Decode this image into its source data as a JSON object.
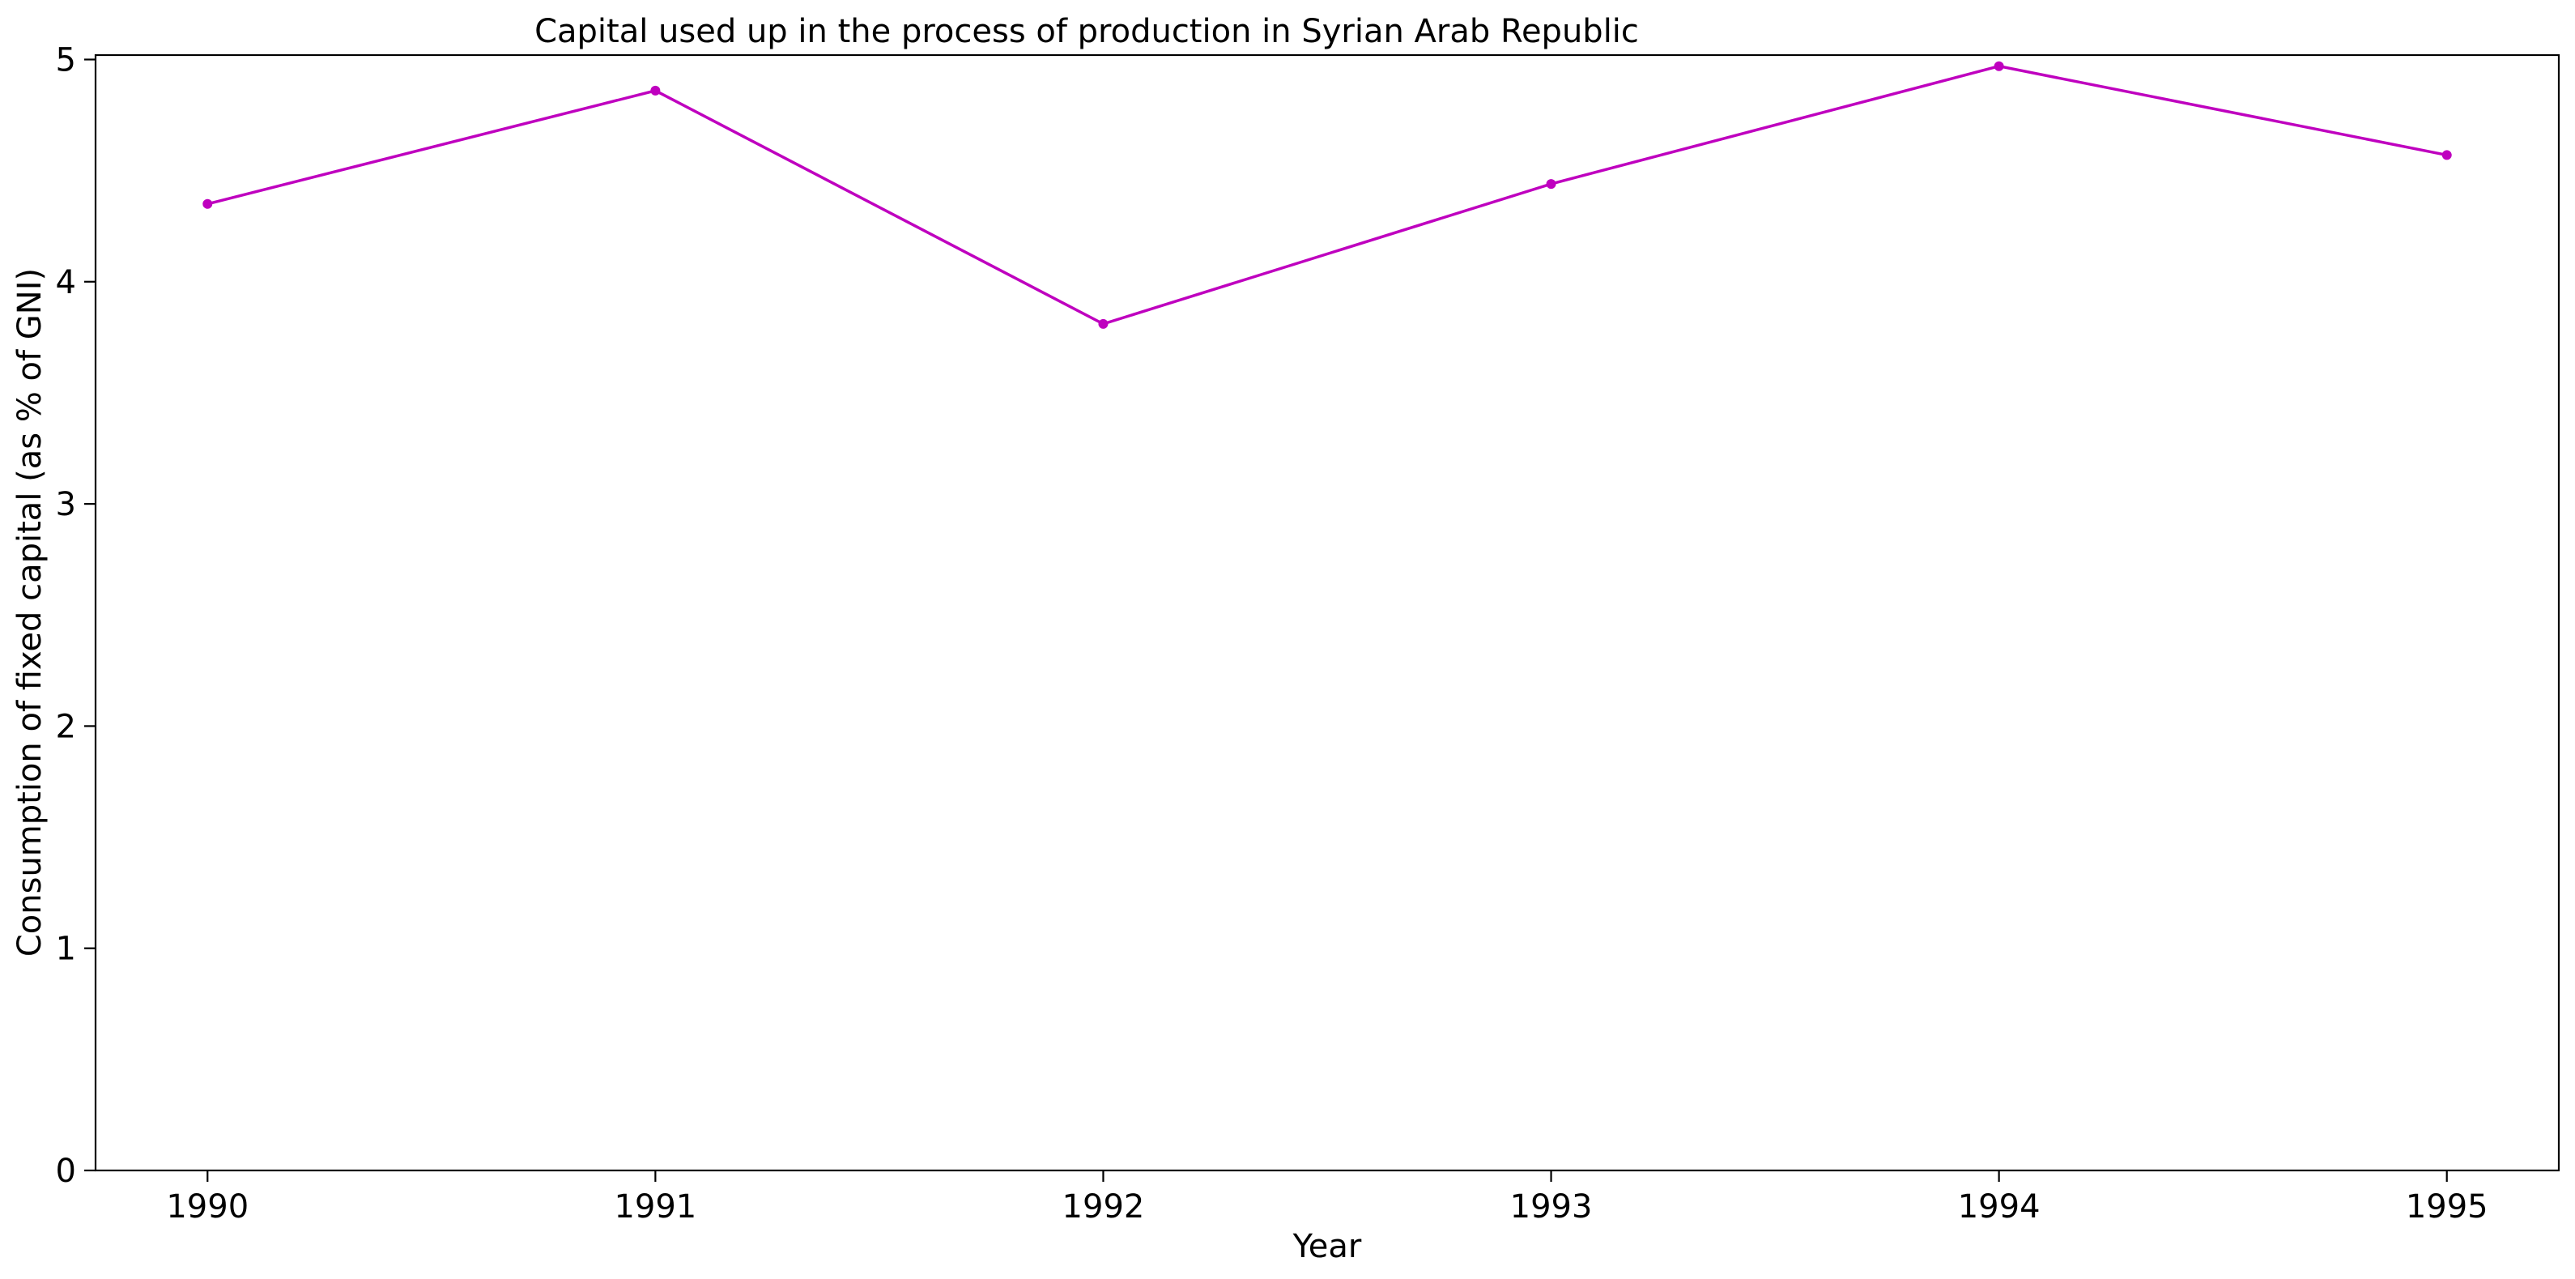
{
  "chart_data": {
    "type": "line",
    "title": "Capital used up in the process of production in Syrian Arab Republic",
    "xlabel": "Year",
    "ylabel": "Consumption of fixed capital (as % of GNI)",
    "x": [
      "1990",
      "1991",
      "1992",
      "1993",
      "1994",
      "1995"
    ],
    "y": [
      4.35,
      4.86,
      3.81,
      4.44,
      4.97,
      4.57
    ],
    "xlim": [
      1989.75,
      1995.25
    ],
    "ylim": [
      0,
      5.02
    ],
    "yticks": [
      "0",
      "1",
      "2",
      "3",
      "4",
      "5"
    ],
    "grid": false,
    "legend": "none",
    "line_color": "#bf00bf"
  }
}
